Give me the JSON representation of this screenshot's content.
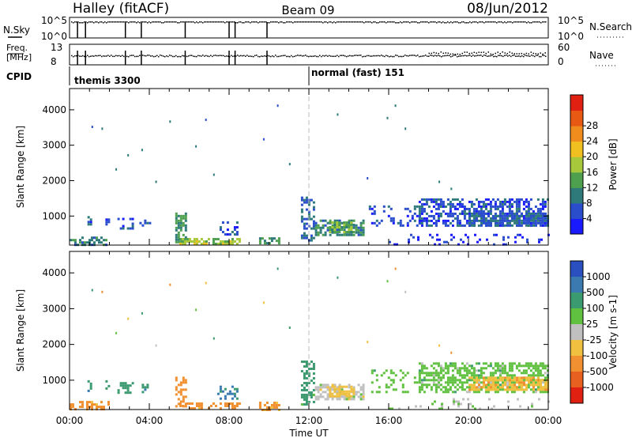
{
  "header": {
    "station": "Halley (fitACF)",
    "beam": "Beam 09",
    "date": "08/Jun/2012"
  },
  "nsky_panel": {
    "left_label": "N.Sky",
    "right_label": "N.Search",
    "left_ticks": [
      "10^5",
      "10^0"
    ],
    "right_ticks": [
      "10^5",
      "10^0"
    ]
  },
  "freq_panel": {
    "left_label_line1": "Freq.",
    "left_label_line2": "[MHz]",
    "right_label": "Nave",
    "left_ticks": [
      "13",
      "8"
    ],
    "right_ticks": [
      "60",
      "0"
    ]
  },
  "cpid": {
    "label": "CPID",
    "segments": [
      {
        "text": "themis 3300",
        "start_hour": 0
      },
      {
        "text": "normal (fast) 151",
        "start_hour": 12
      }
    ]
  },
  "range_axis": {
    "label": "Slant Range [km]",
    "ticks": [
      "1000",
      "2000",
      "3000",
      "4000"
    ]
  },
  "power_colorbar": {
    "label": "Power [dB]",
    "ticks": [
      "4",
      "8",
      "12",
      "16",
      "20",
      "24",
      "28"
    ],
    "colors": [
      "#1a1aff",
      "#2a4dcc",
      "#2e7a7a",
      "#4ea04e",
      "#a8c83c",
      "#f0c020",
      "#f08c1e",
      "#e85a14",
      "#e02010"
    ]
  },
  "velocity_colorbar": {
    "label": "Velocity [m s-1]",
    "ticks": [
      "1000",
      "500",
      "100",
      "25",
      "-25",
      "-100",
      "-500",
      "-1000"
    ],
    "colors": [
      "#2a50c0",
      "#3a7ab0",
      "#3c9a70",
      "#60c040",
      "#c0c0c0",
      "#f0c040",
      "#f09030",
      "#e86020",
      "#e02010"
    ]
  },
  "time_axis": {
    "label": "Time UT",
    "ticks": [
      "00:00",
      "04:00",
      "08:00",
      "12:00",
      "16:00",
      "20:00",
      "00:00"
    ]
  },
  "chart_data": {
    "type": "heatmap",
    "x_range_hours": [
      0,
      24
    ],
    "y_range_km": [
      180,
      4600
    ],
    "scatter_regions": [
      {
        "t0": 0.0,
        "t1": 2.0,
        "r0": 200,
        "r1": 420,
        "density": 0.5,
        "power": 10,
        "vel": -150
      },
      {
        "t0": 0.9,
        "t1": 1.1,
        "r0": 700,
        "r1": 1000,
        "density": 0.55,
        "power": 6,
        "vel": 400
      },
      {
        "t0": 1.8,
        "t1": 2.0,
        "r0": 750,
        "r1": 1000,
        "density": 0.5,
        "power": 5,
        "vel": 500
      },
      {
        "t0": 2.4,
        "t1": 3.2,
        "r0": 650,
        "r1": 950,
        "density": 0.45,
        "power": 6,
        "vel": 300
      },
      {
        "t0": 3.5,
        "t1": 4.0,
        "r0": 700,
        "r1": 900,
        "density": 0.45,
        "power": 6,
        "vel": 400
      },
      {
        "t0": 5.3,
        "t1": 5.8,
        "r0": 250,
        "r1": 1100,
        "density": 0.6,
        "power": 12,
        "vel": -300
      },
      {
        "t0": 5.5,
        "t1": 8.5,
        "r0": 200,
        "r1": 380,
        "density": 0.55,
        "power": 18,
        "vel": -180
      },
      {
        "t0": 7.4,
        "t1": 8.4,
        "r0": 500,
        "r1": 850,
        "density": 0.4,
        "power": 7,
        "vel": 600
      },
      {
        "t0": 9.5,
        "t1": 10.5,
        "r0": 200,
        "r1": 400,
        "density": 0.5,
        "power": 12,
        "vel": -120
      },
      {
        "t0": 11.6,
        "t1": 12.2,
        "r0": 300,
        "r1": 1550,
        "density": 0.45,
        "power": 8,
        "vel": 200
      },
      {
        "t0": 12.3,
        "t1": 14.7,
        "r0": 450,
        "r1": 900,
        "density": 0.65,
        "power": 11,
        "vel": 0
      },
      {
        "t0": 13.0,
        "t1": 14.2,
        "r0": 550,
        "r1": 850,
        "density": 0.8,
        "power": 14,
        "vel": -60
      },
      {
        "t0": 15.0,
        "t1": 17.5,
        "r0": 700,
        "r1": 1300,
        "density": 0.25,
        "power": 5,
        "vel": 60
      },
      {
        "t0": 17.5,
        "t1": 24.0,
        "r0": 700,
        "r1": 1500,
        "density": 0.55,
        "power": 6,
        "vel": 60
      },
      {
        "t0": 20.0,
        "t1": 24.0,
        "r0": 750,
        "r1": 1100,
        "density": 0.75,
        "power": 8,
        "vel": -80
      },
      {
        "t0": 16.0,
        "t1": 24.0,
        "r0": 200,
        "r1": 500,
        "density": 0.12,
        "power": 4,
        "vel": 20
      }
    ],
    "isolated_points": [
      {
        "t": 1.1,
        "r": 3550
      },
      {
        "t": 1.6,
        "r": 3500
      },
      {
        "t": 2.3,
        "r": 2350
      },
      {
        "t": 2.9,
        "r": 2750
      },
      {
        "t": 3.6,
        "r": 2900
      },
      {
        "t": 4.3,
        "r": 2000
      },
      {
        "t": 5.0,
        "r": 3700
      },
      {
        "t": 6.3,
        "r": 3000
      },
      {
        "t": 6.8,
        "r": 3750
      },
      {
        "t": 7.2,
        "r": 2200
      },
      {
        "t": 9.7,
        "r": 3200
      },
      {
        "t": 10.4,
        "r": 4150
      },
      {
        "t": 11.0,
        "r": 2500
      },
      {
        "t": 13.4,
        "r": 3900
      },
      {
        "t": 14.9,
        "r": 2100
      },
      {
        "t": 15.9,
        "r": 3800
      },
      {
        "t": 16.3,
        "r": 4150
      },
      {
        "t": 16.8,
        "r": 3500
      },
      {
        "t": 18.5,
        "r": 2000
      },
      {
        "t": 19.1,
        "r": 1800
      }
    ],
    "nsky_drop_hours": [
      0.4,
      0.8,
      2.8,
      3.6,
      5.8,
      8.0,
      8.3,
      9.9
    ],
    "cpid_change_hour": 12
  }
}
